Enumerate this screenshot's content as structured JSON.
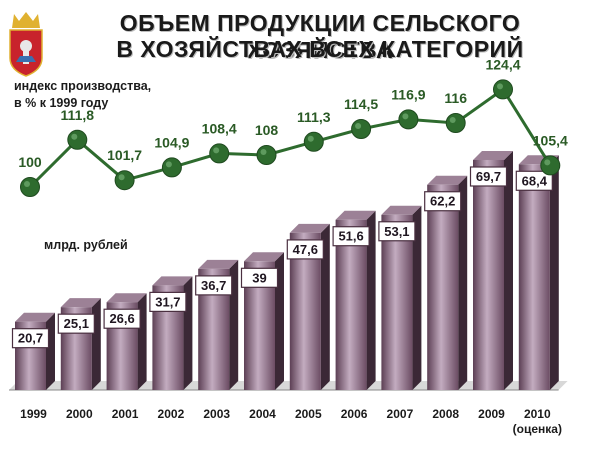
{
  "header": {
    "title_line1": "ОБЪЕМ ПРОДУКЦИИ СЕЛЬСКОГО ХОЗЯЙСТВА",
    "title_line2": "В ХОЗЯЙСТВАХ ВСЕХ КАТЕГОРИЙ",
    "emblem_icon": "moscow-region-coat-of-arms-icon"
  },
  "colors": {
    "line": "#2e6b2e",
    "index_text": "#2a5a25",
    "bar_front": "#6f4f66",
    "bar_side": "#3b2836",
    "label_box_border": "#4a2f40",
    "floor": "#d8d8d8"
  },
  "chart_data": [
    {
      "type": "line",
      "ylabel": "индекс производства,",
      "ylabel_line2": "в % к 1999 году",
      "x": [
        "1999",
        "2000",
        "2001",
        "2002",
        "2003",
        "2004",
        "2005",
        "2006",
        "2007",
        "2008",
        "2009",
        "2010"
      ],
      "values": [
        100,
        111.8,
        101.7,
        104.9,
        108.4,
        108,
        111.3,
        114.5,
        116.9,
        116,
        124.4,
        105.4
      ],
      "labels": [
        "100",
        "111,8",
        "101,7",
        "104,9",
        "108,4",
        "108",
        "111,3",
        "114,5",
        "116,9",
        "116",
        "124,4",
        "105,4"
      ]
    },
    {
      "type": "bar",
      "ylabel": "млрд. рублей",
      "categories": [
        "1999",
        "2000",
        "2001",
        "2002",
        "2003",
        "2004",
        "2005",
        "2006",
        "2007",
        "2008",
        "2009",
        "2010"
      ],
      "category_note": "(оценка)",
      "values": [
        20.7,
        25.1,
        26.6,
        31.7,
        36.7,
        39,
        47.6,
        51.6,
        53.1,
        62.2,
        69.7,
        68.4
      ],
      "labels": [
        "20,7",
        "25,1",
        "26,6",
        "31,7",
        "36,7",
        "39",
        "47,6",
        "51,6",
        "53,1",
        "62,2",
        "69,7",
        "68,4"
      ]
    }
  ]
}
